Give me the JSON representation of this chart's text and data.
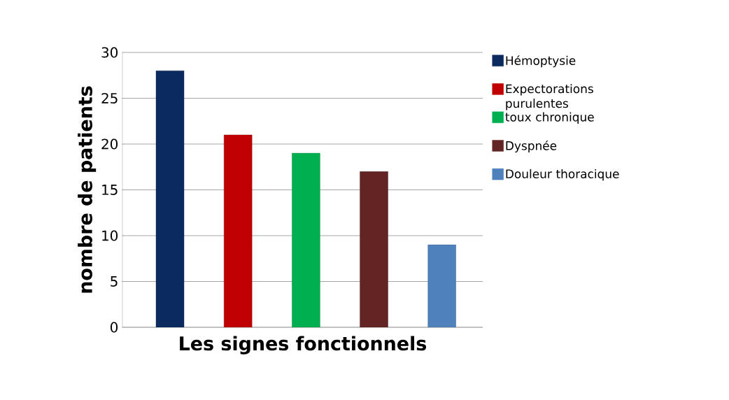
{
  "chart_data": {
    "type": "bar",
    "xlabel": "Les signes fonctionnels",
    "ylabel": "nombre de patients",
    "categories": [
      null,
      null,
      null,
      null,
      null
    ],
    "series": [
      {
        "name": "Hémoptysie",
        "color": "#0b2a5e",
        "values": [
          28,
          null,
          null,
          null,
          null
        ]
      },
      {
        "name": "Expectorations purulentes",
        "color": "#c00000",
        "values": [
          null,
          21,
          null,
          null,
          null
        ]
      },
      {
        "name": "toux chronique",
        "color": "#00b050",
        "values": [
          null,
          null,
          19,
          null,
          null
        ]
      },
      {
        "name": "Dyspnée",
        "color": "#632523",
        "values": [
          null,
          null,
          null,
          17,
          null
        ]
      },
      {
        "name": "Douleur thoracique",
        "color": "#4f81bd",
        "values": [
          null,
          null,
          null,
          null,
          9
        ]
      }
    ],
    "ylim": [
      0,
      30
    ],
    "yticks": [
      0,
      5,
      10,
      15,
      20,
      25,
      30
    ],
    "grid": "y",
    "legend": "right"
  }
}
